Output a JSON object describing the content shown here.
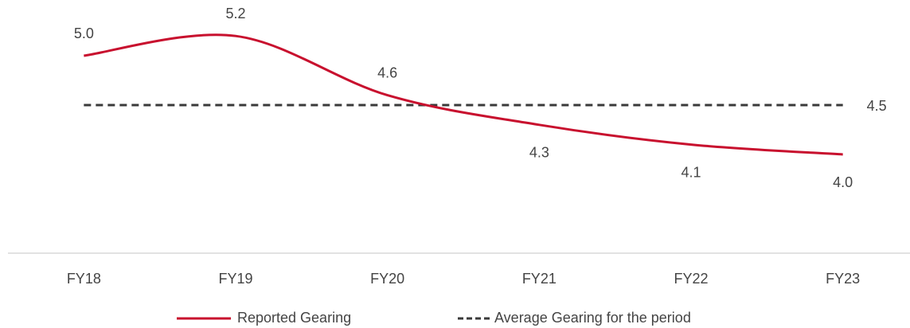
{
  "chart_data": {
    "type": "line",
    "categories": [
      "FY18",
      "FY19",
      "FY20",
      "FY21",
      "FY22",
      "FY23"
    ],
    "series": [
      {
        "name": "Reported Gearing",
        "color": "#c8102e",
        "values": [
          5.0,
          5.2,
          4.6,
          4.3,
          4.1,
          4.0
        ],
        "value_labels": [
          "5.0",
          "5.2",
          "4.6",
          "4.3",
          "4.1",
          "4.0"
        ]
      }
    ],
    "average": {
      "name": "Average Gearing for the period",
      "color": "#3a3a3a",
      "value": 4.5,
      "value_label": "4.5"
    },
    "ylim": [
      3,
      5.5
    ]
  }
}
